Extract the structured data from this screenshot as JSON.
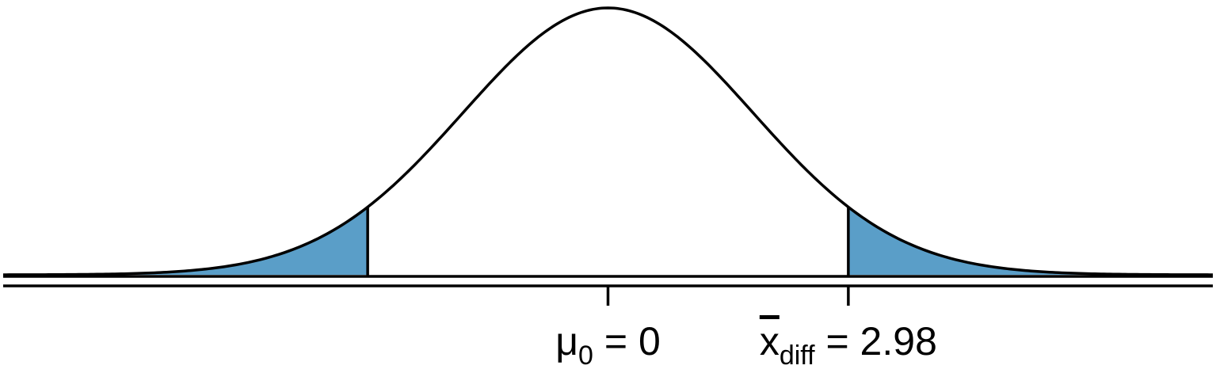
{
  "chart_data": {
    "type": "area",
    "distribution": "normal",
    "mean": 0,
    "observed": 2.98,
    "shaded_tails": [
      {
        "side": "left",
        "from": -7.5,
        "to": -2.98
      },
      {
        "side": "right",
        "from": 2.98,
        "to": 7.5
      }
    ],
    "xlim": [
      -7.5,
      7.5
    ],
    "ticks": [
      {
        "value": 0,
        "symbol": "μ",
        "subscript": "0",
        "rest": " = 0",
        "overline": false
      },
      {
        "value": 2.98,
        "symbol": "x",
        "subscript": "diff",
        "rest": " = 2.98",
        "overline": true
      }
    ],
    "colors": {
      "tail_fill": "#5A9EC8",
      "curve": "#000000",
      "axis": "#000000"
    }
  }
}
